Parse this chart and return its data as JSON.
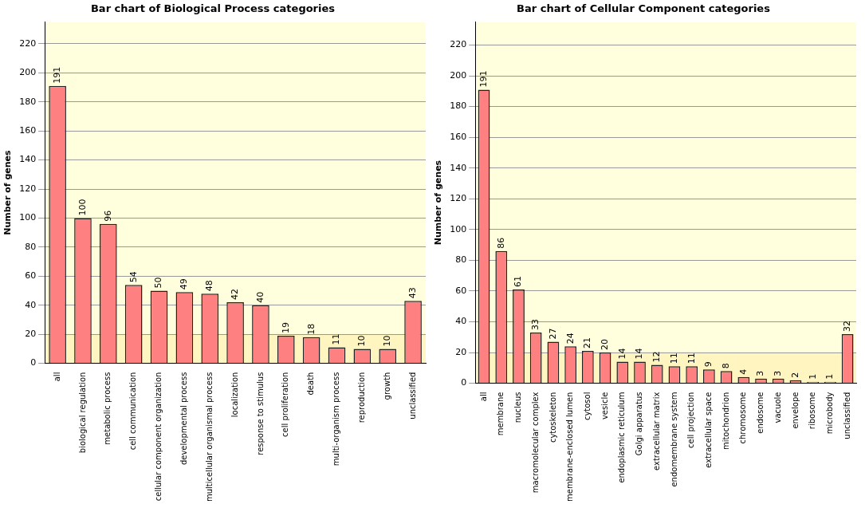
{
  "chart_data": [
    {
      "type": "bar",
      "title": "Bar chart of Biological Process categories",
      "ylabel": "Number of genes",
      "categories": [
        "all",
        "biological regulation",
        "metabolic process",
        "cell communication",
        "cellular component organization",
        "developmental process",
        "multicellular organismal process",
        "localization",
        "response to stimulus",
        "cell proliferation",
        "death",
        "multi-organism process",
        "reproduction",
        "growth",
        "unclassified"
      ],
      "values": [
        191,
        100,
        96,
        54,
        50,
        49,
        48,
        42,
        40,
        19,
        18,
        11,
        10,
        10,
        43
      ],
      "color": "#ff8080",
      "ylim": [
        0,
        235
      ],
      "yticks": [
        0,
        20,
        40,
        60,
        80,
        100,
        120,
        140,
        160,
        180,
        200,
        220
      ],
      "grid": "y",
      "data_labels": true
    },
    {
      "type": "bar",
      "title": "Bar chart of Cellular Component categories",
      "ylabel": "Number of genes",
      "categories": [
        "all",
        "membrane",
        "nucleus",
        "macromolecular complex",
        "cytoskeleton",
        "membrane-enclosed lumen",
        "cytosol",
        "vesicle",
        "endoplasmic reticulum",
        "Golgi apparatus",
        "extracellular matrix",
        "endomembrane system",
        "cell projection",
        "extracellular space",
        "mitochondrion",
        "chromosome",
        "endosome",
        "vacuole",
        "envelope",
        "ribosome",
        "microbody",
        "unclassified"
      ],
      "values": [
        191,
        86,
        61,
        33,
        27,
        24,
        21,
        20,
        14,
        14,
        12,
        11,
        11,
        9,
        8,
        4,
        3,
        3,
        2,
        1,
        1,
        32
      ],
      "color": "#ff8080",
      "ylim": [
        0,
        235
      ],
      "yticks": [
        0,
        20,
        40,
        60,
        80,
        100,
        120,
        140,
        160,
        180,
        200,
        220
      ],
      "grid": "y",
      "data_labels": true
    }
  ]
}
